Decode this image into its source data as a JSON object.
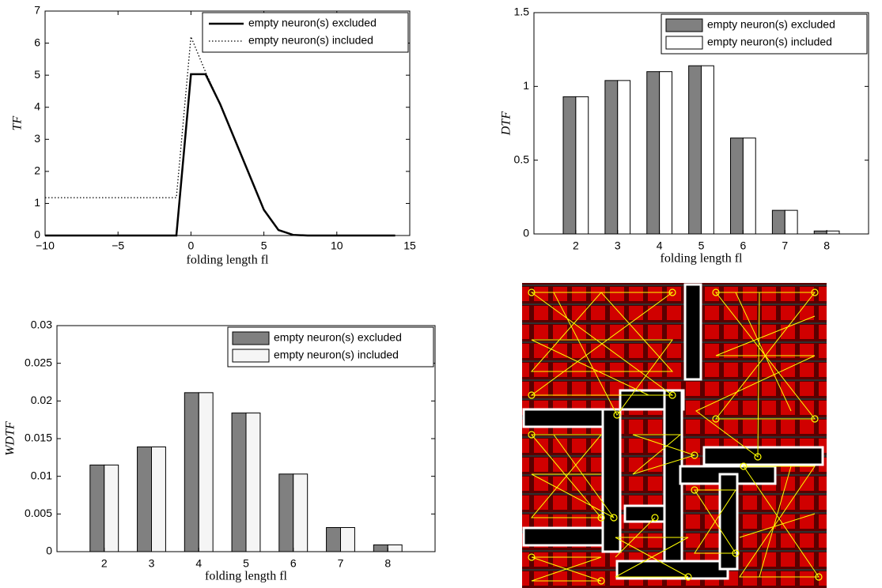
{
  "chart_data": [
    {
      "type": "line",
      "xlabel": "folding length fl",
      "ylabel": "TF",
      "xlim": [
        -10,
        15
      ],
      "xticks": [
        {
          "value": -10,
          "label": "−10"
        },
        {
          "value": -5,
          "label": "−5"
        },
        0,
        5,
        10,
        15
      ],
      "ylim": [
        0,
        7
      ],
      "yticks": [
        0,
        1,
        2,
        3,
        4,
        5,
        6,
        7
      ],
      "x": [
        -10,
        -9,
        -8,
        -7,
        -6,
        -5,
        -4,
        -3,
        -2,
        -1,
        0,
        1,
        2,
        3,
        4,
        5,
        6,
        7,
        8,
        9,
        10,
        11,
        12,
        13,
        14
      ],
      "series": [
        {
          "name": "empty neuron(s) excluded",
          "color": "#000000",
          "linestyle": "solid",
          "values": [
            0,
            0,
            0,
            0,
            0,
            0,
            0,
            0,
            0,
            0,
            5.03,
            5.03,
            4.1,
            3.0,
            1.9,
            0.8,
            0.17,
            0.02,
            0,
            0,
            0,
            0,
            0,
            0,
            0
          ]
        },
        {
          "name": "empty neuron(s) included",
          "color": "#000000",
          "linestyle": "dotted",
          "values": [
            1.18,
            1.18,
            1.18,
            1.18,
            1.18,
            1.18,
            1.18,
            1.18,
            1.18,
            1.18,
            6.2,
            5.1,
            4.1,
            3.0,
            1.9,
            0.8,
            0.17,
            0.02,
            0,
            0,
            0,
            0,
            0,
            0,
            0
          ]
        }
      ],
      "legend": "upper right"
    },
    {
      "type": "bar",
      "xlabel": "folding length fl",
      "ylabel": "DTF",
      "categories": [
        "2",
        "3",
        "4",
        "5",
        "6",
        "7",
        "8"
      ],
      "ylim": [
        0,
        1.5
      ],
      "yticks": [
        0,
        0.5,
        1,
        1.5
      ],
      "series": [
        {
          "name": "empty neuron(s) excluded",
          "color": "#808080",
          "values": [
            0.93,
            1.04,
            1.1,
            1.14,
            0.65,
            0.16,
            0.02
          ]
        },
        {
          "name": "empty neuron(s) included",
          "color": "#ffffff",
          "values": [
            0.93,
            1.04,
            1.1,
            1.14,
            0.65,
            0.16,
            0.02
          ]
        }
      ],
      "legend": "upper right"
    },
    {
      "type": "bar",
      "xlabel": "folding length fl",
      "ylabel": "WDTF",
      "categories": [
        "2",
        "3",
        "4",
        "5",
        "6",
        "7",
        "8"
      ],
      "ylim": [
        0,
        0.03
      ],
      "yticks": [
        0,
        0.005,
        0.01,
        0.015,
        0.02,
        0.025,
        0.03
      ],
      "series": [
        {
          "name": "empty neuron(s) excluded",
          "color": "#808080",
          "values": [
            0.0115,
            0.0139,
            0.0211,
            0.0184,
            0.0103,
            0.0032,
            0.0009
          ]
        },
        {
          "name": "empty neuron(s) included",
          "color": "#f5f5f5",
          "values": [
            0.0115,
            0.0139,
            0.0211,
            0.0184,
            0.0103,
            0.0032,
            0.0009
          ]
        }
      ],
      "legend": "upper right"
    }
  ]
}
